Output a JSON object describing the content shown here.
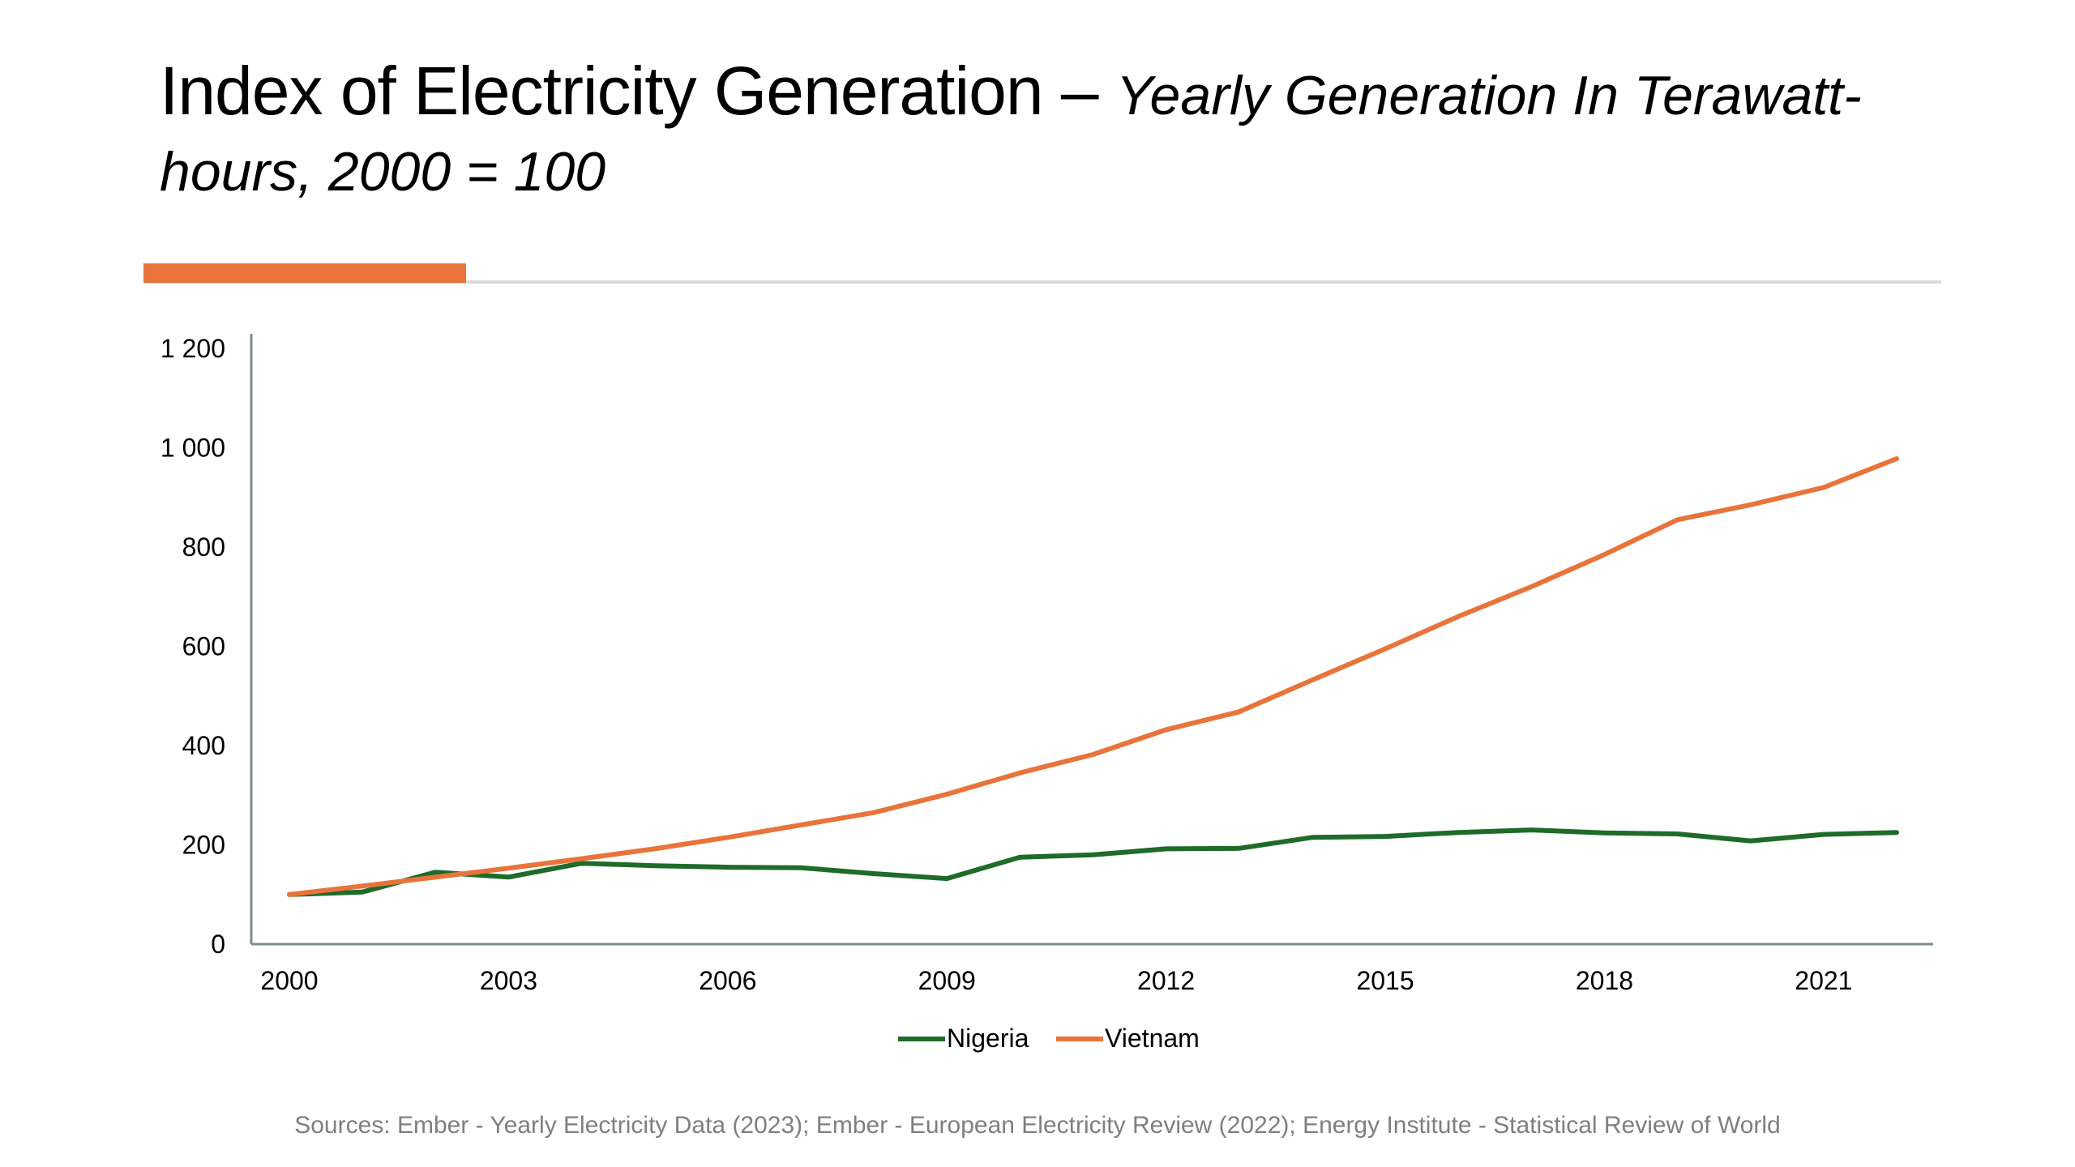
{
  "title": {
    "main": "Index of Electricity Generation –",
    "subtitle": "Yearly Generation In Terawatt-hours, 2000 = 100"
  },
  "colors": {
    "accent": "#e8743b",
    "nigeria": "#1e6b2a",
    "vietnam": "#e8743b",
    "axis": "#7f8c8d",
    "rule": "#d9d9d9",
    "source_text": "#7f7f7f"
  },
  "sources": "Sources:  Ember - Yearly Electricity Data (2023); Ember - European Electricity Review (2022); Energy Institute - Statistical Review of World",
  "chart_data": {
    "type": "line",
    "x": [
      2000,
      2001,
      2002,
      2003,
      2004,
      2005,
      2006,
      2007,
      2008,
      2009,
      2010,
      2011,
      2012,
      2013,
      2014,
      2015,
      2016,
      2017,
      2018,
      2019,
      2020,
      2021,
      2022
    ],
    "series": [
      {
        "name": "Nigeria",
        "values": [
          100,
          105,
          145,
          135,
          163,
          158,
          155,
          154,
          142,
          132,
          175,
          180,
          192,
          193,
          215,
          217,
          225,
          230,
          224,
          222,
          208,
          221,
          225
        ]
      },
      {
        "name": "Vietnam",
        "values": [
          100,
          117,
          135,
          153,
          172,
          192,
          215,
          240,
          265,
          302,
          345,
          382,
          432,
          468,
          532,
          595,
          660,
          720,
          785,
          855,
          885,
          920,
          978
        ]
      }
    ],
    "xticks": [
      "2000",
      "2003",
      "2006",
      "2009",
      "2012",
      "2015",
      "2018",
      "2021"
    ],
    "yticks": [
      "0",
      "200",
      "400",
      "600",
      "800",
      "1 000",
      "1 200"
    ],
    "ylim": [
      0,
      1200
    ],
    "xlim": [
      2000,
      2022
    ],
    "grid": false,
    "legend_position": "bottom-center"
  }
}
